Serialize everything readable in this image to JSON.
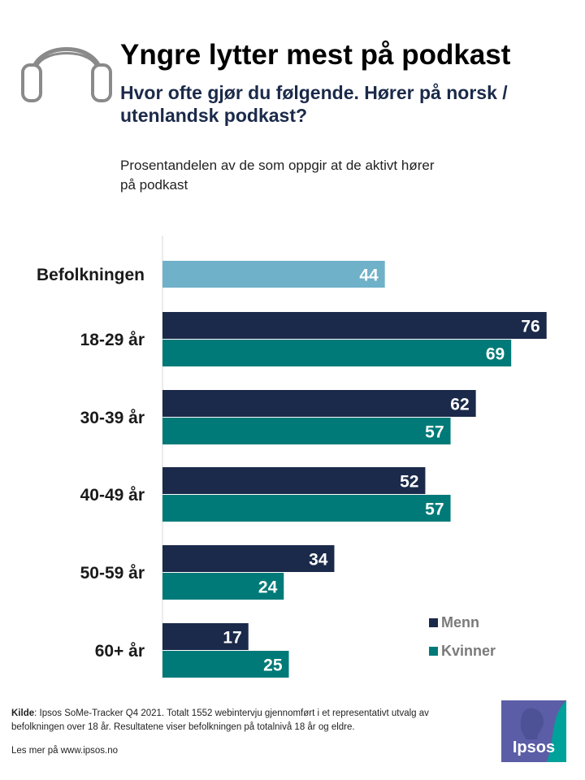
{
  "header": {
    "title": "Yngre lytter mest på podkast",
    "subtitle": "Hvor ofte gjør du følgende. Hører på norsk / utenlandsk podkast?",
    "note": "Prosentandelen av de som oppgir at de aktivt hører på podkast"
  },
  "chart_data": {
    "type": "bar",
    "orientation": "horizontal",
    "title": "Yngre lytter mest på podkast",
    "categories": [
      "Befolkningen",
      "18-29 år",
      "30-39 år",
      "40-49 år",
      "50-59 år",
      "60+ år"
    ],
    "series": [
      {
        "name": "Befolkningen",
        "color": "#6fb1c8",
        "values": [
          44,
          null,
          null,
          null,
          null,
          null
        ]
      },
      {
        "name": "Menn",
        "color": "#1b2a4a",
        "values": [
          null,
          76,
          62,
          52,
          34,
          17
        ]
      },
      {
        "name": "Kvinner",
        "color": "#007a78",
        "values": [
          null,
          69,
          57,
          57,
          24,
          25
        ]
      }
    ],
    "legend": [
      "Menn",
      "Kvinner"
    ],
    "legend_position": "bottom-right",
    "xlim": [
      0,
      80
    ],
    "grid": false
  },
  "footer": {
    "source_label": "Kilde",
    "source_text": ": Ipsos SoMe-Tracker Q4 2021. Totalt 1552 webintervju gjennomført i et representativt utvalg av befolkningen over 18 år. Resultatene viser befolkningen på totalnivå 18 år og eldre.",
    "more": "Les mer på www.ipsos.no"
  },
  "logo": {
    "text": "Ipsos",
    "color": "#5b5ea6",
    "accent": "#00a19a"
  },
  "icons": {
    "header": "headphones-icon"
  }
}
